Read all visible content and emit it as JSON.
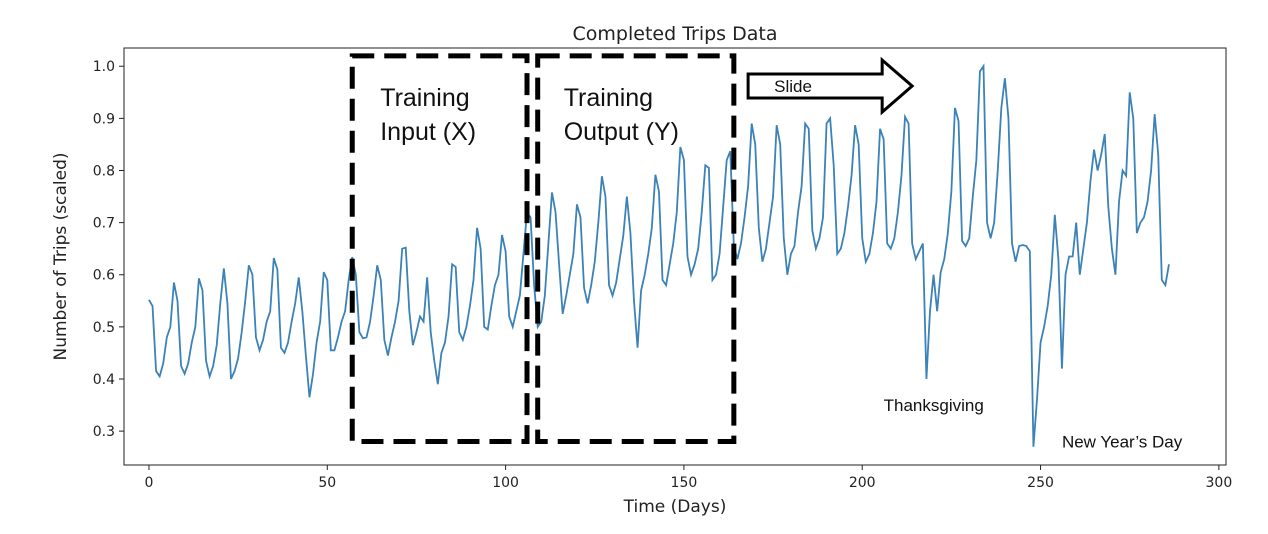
{
  "chart_data": {
    "type": "line",
    "title": "Completed Trips Data",
    "xlabel": "Time (Days)",
    "ylabel": "Number of Trips (scaled)",
    "xlim": [
      -7,
      302
    ],
    "ylim": [
      0.235,
      1.035
    ],
    "xticks": [
      0,
      50,
      100,
      150,
      200,
      250,
      300
    ],
    "yticks": [
      0.3,
      0.4,
      0.5,
      0.6,
      0.7,
      0.8,
      0.9,
      1.0
    ],
    "grid": false,
    "line_color": "#3b82b8",
    "series": [
      {
        "values": [
          0.552,
          0.54,
          0.415,
          0.405,
          0.43,
          0.48,
          0.5,
          0.585,
          0.55,
          0.425,
          0.41,
          0.43,
          0.47,
          0.5,
          0.593,
          0.57,
          0.435,
          0.405,
          0.425,
          0.465,
          0.545,
          0.612,
          0.545,
          0.4,
          0.415,
          0.44,
          0.49,
          0.55,
          0.618,
          0.6,
          0.48,
          0.455,
          0.475,
          0.51,
          0.53,
          0.632,
          0.61,
          0.46,
          0.45,
          0.47,
          0.51,
          0.545,
          0.595,
          0.53,
          0.445,
          0.365,
          0.41,
          0.47,
          0.51,
          0.605,
          0.59,
          0.455,
          0.455,
          0.48,
          0.51,
          0.53,
          0.59,
          0.634,
          0.6,
          0.49,
          0.478,
          0.48,
          0.51,
          0.56,
          0.618,
          0.59,
          0.475,
          0.445,
          0.48,
          0.51,
          0.55,
          0.65,
          0.652,
          0.53,
          0.465,
          0.49,
          0.52,
          0.51,
          0.595,
          0.49,
          0.435,
          0.39,
          0.45,
          0.47,
          0.52,
          0.62,
          0.615,
          0.49,
          0.475,
          0.5,
          0.54,
          0.59,
          0.69,
          0.65,
          0.5,
          0.495,
          0.54,
          0.58,
          0.6,
          0.676,
          0.645,
          0.52,
          0.5,
          0.53,
          0.56,
          0.64,
          0.72,
          0.71,
          0.58,
          0.5,
          0.51,
          0.56,
          0.66,
          0.758,
          0.72,
          0.62,
          0.525,
          0.56,
          0.6,
          0.64,
          0.735,
          0.71,
          0.575,
          0.545,
          0.58,
          0.625,
          0.7,
          0.789,
          0.75,
          0.58,
          0.56,
          0.585,
          0.63,
          0.675,
          0.75,
          0.68,
          0.55,
          0.46,
          0.57,
          0.6,
          0.64,
          0.69,
          0.792,
          0.76,
          0.59,
          0.58,
          0.62,
          0.66,
          0.72,
          0.845,
          0.82,
          0.635,
          0.6,
          0.62,
          0.65,
          0.72,
          0.81,
          0.805,
          0.59,
          0.6,
          0.64,
          0.73,
          0.82,
          0.837,
          0.655,
          0.63,
          0.66,
          0.71,
          0.77,
          0.89,
          0.85,
          0.69,
          0.625,
          0.65,
          0.7,
          0.75,
          0.887,
          0.85,
          0.67,
          0.6,
          0.64,
          0.655,
          0.72,
          0.77,
          0.89,
          0.88,
          0.685,
          0.65,
          0.67,
          0.71,
          0.89,
          0.9,
          0.81,
          0.64,
          0.65,
          0.68,
          0.73,
          0.79,
          0.887,
          0.85,
          0.67,
          0.625,
          0.64,
          0.68,
          0.74,
          0.88,
          0.86,
          0.66,
          0.65,
          0.67,
          0.72,
          0.79,
          0.903,
          0.89,
          0.66,
          0.63,
          0.645,
          0.66,
          0.4,
          0.53,
          0.6,
          0.53,
          0.605,
          0.63,
          0.68,
          0.76,
          0.92,
          0.895,
          0.665,
          0.655,
          0.67,
          0.75,
          0.82,
          0.99,
          1.0,
          0.7,
          0.67,
          0.7,
          0.8,
          0.92,
          0.977,
          0.9,
          0.66,
          0.625,
          0.655,
          0.657,
          0.655,
          0.645,
          0.27,
          0.36,
          0.47,
          0.5,
          0.54,
          0.6,
          0.715,
          0.63,
          0.42,
          0.6,
          0.635,
          0.635,
          0.7,
          0.6,
          0.65,
          0.7,
          0.78,
          0.84,
          0.8,
          0.83,
          0.87,
          0.73,
          0.65,
          0.6,
          0.74,
          0.8,
          0.79,
          0.95,
          0.9,
          0.68,
          0.7,
          0.71,
          0.74,
          0.8,
          0.908,
          0.83,
          0.59,
          0.58,
          0.62
        ]
      }
    ],
    "overlays": {
      "input_box": {
        "label_line1": "Training",
        "label_line2": "Input (X)",
        "x_start": 57,
        "x_end": 106,
        "y_bottom": 0.28,
        "y_top": 1.02
      },
      "output_box": {
        "label_line1": "Training",
        "label_line2": "Output (Y)",
        "x_start": 109,
        "x_end": 164,
        "y_bottom": 0.28,
        "y_top": 1.02
      },
      "slide_arrow": {
        "label": "Slide",
        "x_start": 168,
        "x_end": 214,
        "y_center": 0.962
      },
      "annotations": [
        {
          "text": "Thanksgiving",
          "x": 206,
          "y": 0.35
        },
        {
          "text": "New Year’s Day",
          "x": 256,
          "y": 0.28
        }
      ]
    }
  }
}
